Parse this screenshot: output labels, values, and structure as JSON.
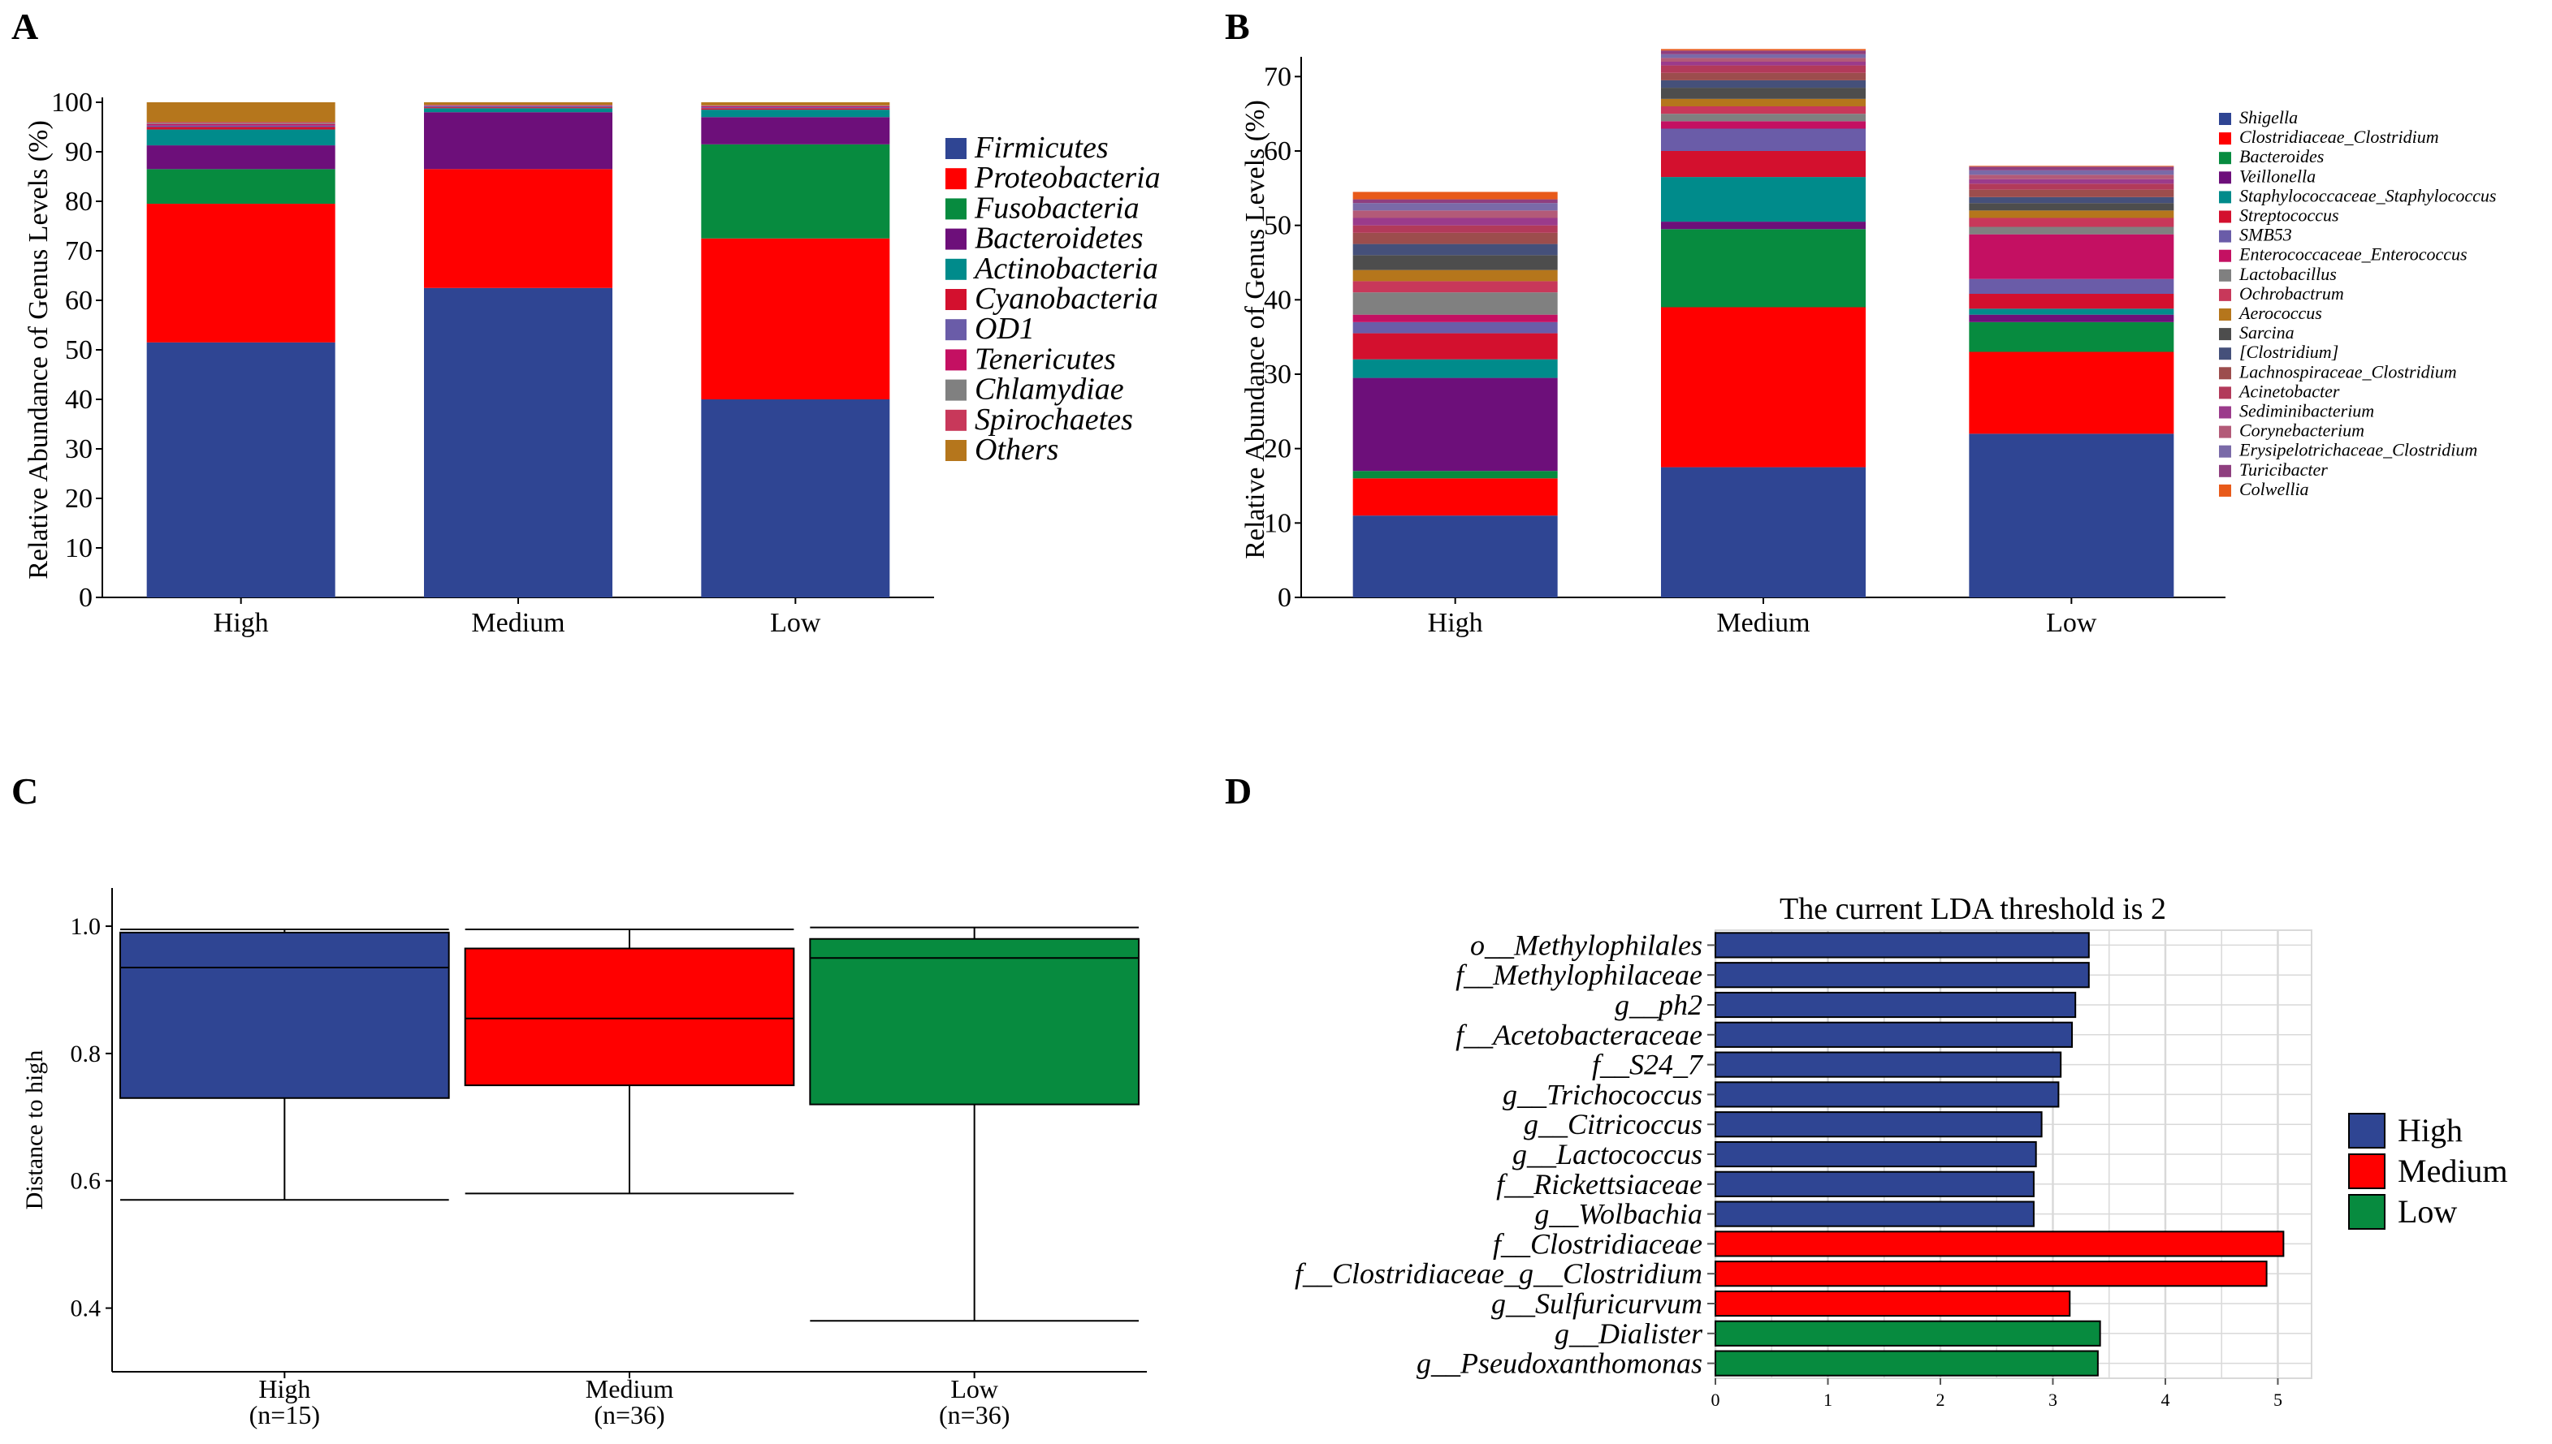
{
  "panel_letters": [
    "A",
    "B",
    "C",
    "D"
  ],
  "chart_data": [
    {
      "id": "A",
      "type": "bar",
      "stacked": true,
      "title": "",
      "ylabel": "Relative Abundance of Genus Levels (%)",
      "xlabel": "",
      "ylim": [
        0,
        100
      ],
      "yticks": [
        0,
        10,
        20,
        30,
        40,
        50,
        60,
        70,
        80,
        90,
        100
      ],
      "categories": [
        "High",
        "Medium",
        "Low"
      ],
      "legend_position": "right",
      "series": [
        {
          "name": "Firmicutes",
          "color": "#2f4593",
          "values": [
            51.5,
            62.5,
            40.0
          ]
        },
        {
          "name": "Proteobacteria",
          "color": "#ff0000",
          "values": [
            28.0,
            24.0,
            32.5
          ]
        },
        {
          "name": "Fusobacteria",
          "color": "#078b3f",
          "values": [
            7.0,
            0.0,
            19.0
          ]
        },
        {
          "name": "Bacteroidetes",
          "color": "#6d0f7a",
          "values": [
            4.8,
            11.5,
            5.5
          ]
        },
        {
          "name": "Actinobacteria",
          "color": "#008b8b",
          "values": [
            3.2,
            0.8,
            1.5
          ]
        },
        {
          "name": "Cyanobacteria",
          "color": "#d3102e",
          "values": [
            0.5,
            0.2,
            0.3
          ]
        },
        {
          "name": "OD1",
          "color": "#6a5ca8",
          "values": [
            0.3,
            0.2,
            0.2
          ]
        },
        {
          "name": "Tenericutes",
          "color": "#c41062",
          "values": [
            0.3,
            0.1,
            0.2
          ]
        },
        {
          "name": "Chlamydiae",
          "color": "#808080",
          "values": [
            0.2,
            0.1,
            0.1
          ]
        },
        {
          "name": "Spirochaetes",
          "color": "#c8385a",
          "values": [
            0.2,
            0.1,
            0.1
          ]
        },
        {
          "name": "Others",
          "color": "#b5761c",
          "values": [
            4.0,
            0.5,
            0.6
          ]
        }
      ]
    },
    {
      "id": "B",
      "type": "bar",
      "stacked": true,
      "title": "",
      "ylabel": "Relative Abundance of Genus Levels (%)",
      "xlabel": "",
      "ylim": [
        0,
        72
      ],
      "yticks": [
        0,
        10,
        20,
        30,
        40,
        50,
        60,
        70
      ],
      "categories": [
        "High",
        "Medium",
        "Low"
      ],
      "legend_position": "right",
      "series": [
        {
          "name": "Shigella",
          "color": "#2f4593",
          "values": [
            11.0,
            17.5,
            22.0
          ]
        },
        {
          "name": "Clostridiaceae_Clostridium",
          "color": "#ff0000",
          "values": [
            5.0,
            21.5,
            11.0
          ]
        },
        {
          "name": "Bacteroides",
          "color": "#078b3f",
          "values": [
            1.0,
            10.5,
            4.0
          ]
        },
        {
          "name": "Veillonella",
          "color": "#6d0f7a",
          "values": [
            12.5,
            1.0,
            1.0
          ]
        },
        {
          "name": "Staphylococcaceae_Staphylococcus",
          "color": "#008b8b",
          "values": [
            2.5,
            6.0,
            0.8
          ]
        },
        {
          "name": "Streptococcus",
          "color": "#d3102e",
          "values": [
            3.5,
            3.5,
            2.0
          ]
        },
        {
          "name": "SMB53",
          "color": "#6a5ca8",
          "values": [
            1.5,
            3.0,
            2.0
          ]
        },
        {
          "name": "Enterococcaceae_Enterococcus",
          "color": "#c41062",
          "values": [
            1.0,
            1.0,
            6.0
          ]
        },
        {
          "name": "Lactobacillus",
          "color": "#808080",
          "values": [
            3.0,
            1.0,
            1.0
          ]
        },
        {
          "name": "Ochrobactrum",
          "color": "#c8385a",
          "values": [
            1.5,
            1.0,
            1.2
          ]
        },
        {
          "name": "Aerococcus",
          "color": "#b5761c",
          "values": [
            1.5,
            1.0,
            1.0
          ]
        },
        {
          "name": "Sarcina",
          "color": "#4d4d4d",
          "values": [
            2.0,
            1.5,
            1.0
          ]
        },
        {
          "name": "[Clostridium]",
          "color": "#45507a",
          "values": [
            1.5,
            1.0,
            0.8
          ]
        },
        {
          "name": "Lachnospiraceae_Clostridium",
          "color": "#9c4d4d",
          "values": [
            1.5,
            1.0,
            1.0
          ]
        },
        {
          "name": "Acinetobacter",
          "color": "#b23a5a",
          "values": [
            1.0,
            1.0,
            0.8
          ]
        },
        {
          "name": "Sediminibacterium",
          "color": "#9b3b8b",
          "values": [
            1.0,
            0.5,
            0.6
          ]
        },
        {
          "name": "Corynebacterium",
          "color": "#b35a78",
          "values": [
            1.0,
            0.5,
            0.6
          ]
        },
        {
          "name": "Erysipelotrichaceae_Clostridium",
          "color": "#7a6aa8",
          "values": [
            1.0,
            0.5,
            0.6
          ]
        },
        {
          "name": "Turicibacter",
          "color": "#8f3f7f",
          "values": [
            0.5,
            0.5,
            0.5
          ]
        },
        {
          "name": "Colwellia",
          "color": "#e85a1a",
          "values": [
            1.0,
            0.2,
            0.1
          ]
        }
      ]
    },
    {
      "id": "C",
      "type": "boxplot",
      "title": "",
      "ylabel": "Distance to high",
      "xlabel": "",
      "ylim": [
        0.3,
        1.06
      ],
      "yticks": [
        "0.4",
        "0.6",
        "0.8",
        "1.0"
      ],
      "groups": [
        {
          "label": "High",
          "n_label": "(n=15)",
          "color": "#2f4593",
          "min": 0.57,
          "q1": 0.73,
          "median": 0.935,
          "q3": 0.99,
          "max": 0.995
        },
        {
          "label": "Medium",
          "n_label": "(n=36)",
          "color": "#ff0000",
          "min": 0.58,
          "q1": 0.75,
          "median": 0.855,
          "q3": 0.965,
          "max": 0.995
        },
        {
          "label": "Low",
          "n_label": "(n=36)",
          "color": "#078b3f",
          "min": 0.38,
          "q1": 0.72,
          "median": 0.95,
          "q3": 0.98,
          "max": 0.998
        }
      ]
    },
    {
      "id": "D",
      "type": "bar",
      "orientation": "horizontal",
      "title": "The current LDA threshold is 2",
      "xlabel": "",
      "ylabel": "",
      "xlim": [
        0,
        5.3
      ],
      "xticks": [
        0,
        1,
        2,
        3,
        4,
        5
      ],
      "legend_position": "right",
      "legend": [
        {
          "name": "High",
          "color": "#2f4593"
        },
        {
          "name": "Medium",
          "color": "#ff0000"
        },
        {
          "name": "Low",
          "color": "#078b3f"
        }
      ],
      "bars": [
        {
          "label": "o__Methylophilales",
          "value": 3.32,
          "group": "High"
        },
        {
          "label": "f__Methylophilaceae",
          "value": 3.32,
          "group": "High"
        },
        {
          "label": "g__ph2",
          "value": 3.2,
          "group": "High"
        },
        {
          "label": "f__Acetobacteraceae",
          "value": 3.17,
          "group": "High"
        },
        {
          "label": "f__S24_7",
          "value": 3.07,
          "group": "High"
        },
        {
          "label": "g__Trichococcus",
          "value": 3.05,
          "group": "High"
        },
        {
          "label": "g__Citricoccus",
          "value": 2.9,
          "group": "High"
        },
        {
          "label": "g__Lactococcus",
          "value": 2.85,
          "group": "High"
        },
        {
          "label": "f__Rickettsiaceae",
          "value": 2.83,
          "group": "High"
        },
        {
          "label": "g__Wolbachia",
          "value": 2.83,
          "group": "High"
        },
        {
          "label": "f__Clostridiaceae",
          "value": 5.05,
          "group": "Medium"
        },
        {
          "label": "f__Clostridiaceae_g__Clostridium",
          "value": 4.9,
          "group": "Medium"
        },
        {
          "label": "g__Sulfuricurvum",
          "value": 3.15,
          "group": "Medium"
        },
        {
          "label": "g__Dialister",
          "value": 3.42,
          "group": "Low"
        },
        {
          "label": "g__Pseudoxanthomonas",
          "value": 3.4,
          "group": "Low"
        }
      ]
    }
  ]
}
